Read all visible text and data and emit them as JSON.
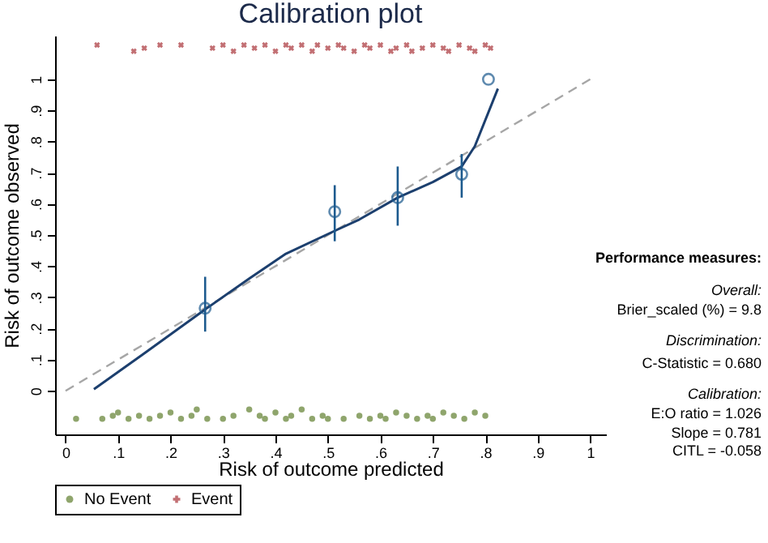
{
  "chart_data": {
    "type": "scatter",
    "title": "Calibration plot",
    "xlabel": "Risk of outcome predicted",
    "ylabel": "Risk of outcome observed",
    "xlim": [
      -0.02,
      1.03
    ],
    "ylim": [
      -0.14,
      1.14
    ],
    "xticks": [
      0,
      {
        "value": 0.1,
        "label": ".1"
      },
      {
        "value": 0.2,
        "label": ".2"
      },
      {
        "value": 0.3,
        "label": ".3"
      },
      {
        "value": 0.4,
        "label": ".4"
      },
      {
        "value": 0.5,
        "label": ".5"
      },
      {
        "value": 0.6,
        "label": ".6"
      },
      {
        "value": 0.7,
        "label": ".7"
      },
      {
        "value": 0.8,
        "label": ".8"
      },
      {
        "value": 0.9,
        "label": ".9"
      },
      1
    ],
    "yticks": [
      0,
      {
        "value": 0.1,
        "label": ".1"
      },
      {
        "value": 0.2,
        "label": ".2"
      },
      {
        "value": 0.3,
        "label": ".3"
      },
      {
        "value": 0.4,
        "label": ".4"
      },
      {
        "value": 0.5,
        "label": ".5"
      },
      {
        "value": 0.6,
        "label": ".6"
      },
      {
        "value": 0.7,
        "label": ".7"
      },
      {
        "value": 0.8,
        "label": ".8"
      },
      {
        "value": 0.9,
        "label": ".9"
      },
      1
    ],
    "grid": false,
    "legend": "bottom",
    "series": [
      {
        "type": "line",
        "color": "#a6a6a6",
        "line_style": "dashed",
        "marker": "none",
        "x": [
          0,
          1
        ],
        "values": [
          0,
          1
        ]
      },
      {
        "type": "line",
        "color": "#1c3f6e",
        "line_style": "solid",
        "marker": "none",
        "x": [
          0.054,
          0.15,
          0.265,
          0.35,
          0.42,
          0.515,
          0.56,
          0.633,
          0.7,
          0.755,
          0.78,
          0.824
        ],
        "values": [
          0.005,
          0.12,
          0.26,
          0.36,
          0.44,
          0.515,
          0.55,
          0.62,
          0.67,
          0.72,
          0.785,
          0.97
        ]
      },
      {
        "type": "scatter",
        "color": "#1c5a8e",
        "marker": "circle",
        "x": [
          0.266,
          0.513,
          0.633,
          0.755,
          0.806
        ],
        "values": [
          0.265,
          0.575,
          0.62,
          0.695,
          1.0
        ],
        "errors": [
          [
            0.19,
            0.366
          ],
          [
            0.48,
            0.66
          ],
          [
            0.53,
            0.72
          ],
          [
            0.62,
            0.76
          ],
          null
        ]
      },
      {
        "type": "scatter",
        "name": "No Event",
        "color": "#5f7f2e",
        "marker": "circle",
        "x": [
          0.02,
          0.07,
          0.09,
          0.1,
          0.12,
          0.14,
          0.16,
          0.18,
          0.2,
          0.22,
          0.24,
          0.25,
          0.27,
          0.3,
          0.32,
          0.35,
          0.37,
          0.38,
          0.4,
          0.42,
          0.43,
          0.45,
          0.47,
          0.49,
          0.5,
          0.53,
          0.56,
          0.58,
          0.6,
          0.61,
          0.63,
          0.65,
          0.67,
          0.69,
          0.7,
          0.72,
          0.74,
          0.76,
          0.78,
          0.8
        ],
        "values": [
          -0.09,
          -0.09,
          -0.08,
          -0.07,
          -0.09,
          -0.08,
          -0.09,
          -0.08,
          -0.07,
          -0.09,
          -0.08,
          -0.06,
          -0.09,
          -0.09,
          -0.08,
          -0.06,
          -0.08,
          -0.09,
          -0.07,
          -0.09,
          -0.08,
          -0.06,
          -0.09,
          -0.08,
          -0.09,
          -0.09,
          -0.08,
          -0.09,
          -0.08,
          -0.09,
          -0.07,
          -0.08,
          -0.09,
          -0.08,
          -0.09,
          -0.07,
          -0.08,
          -0.09,
          -0.07,
          -0.08
        ]
      },
      {
        "type": "scatter",
        "name": "Event",
        "color": "#a83238",
        "marker": "cross",
        "x": [
          0.06,
          0.13,
          0.15,
          0.18,
          0.22,
          0.28,
          0.3,
          0.32,
          0.34,
          0.36,
          0.38,
          0.4,
          0.42,
          0.43,
          0.45,
          0.47,
          0.48,
          0.5,
          0.52,
          0.53,
          0.55,
          0.57,
          0.58,
          0.6,
          0.62,
          0.63,
          0.65,
          0.66,
          0.68,
          0.7,
          0.72,
          0.73,
          0.75,
          0.77,
          0.78,
          0.8,
          0.81
        ],
        "values": [
          1.11,
          1.09,
          1.1,
          1.11,
          1.11,
          1.1,
          1.11,
          1.09,
          1.11,
          1.1,
          1.11,
          1.09,
          1.11,
          1.1,
          1.11,
          1.09,
          1.11,
          1.1,
          1.11,
          1.1,
          1.09,
          1.11,
          1.1,
          1.11,
          1.09,
          1.1,
          1.11,
          1.09,
          1.1,
          1.11,
          1.1,
          1.09,
          1.11,
          1.1,
          1.09,
          1.11,
          1.1
        ]
      }
    ],
    "annotations": [
      "Performance measures:",
      "Overall:",
      "Brier_scaled (%) = 9.8",
      "Discrimination:",
      "C-Statistic = 0.680",
      "Calibration:",
      "E:O ratio = 1.026",
      "Slope = 0.781",
      "CITL = -0.058"
    ]
  }
}
